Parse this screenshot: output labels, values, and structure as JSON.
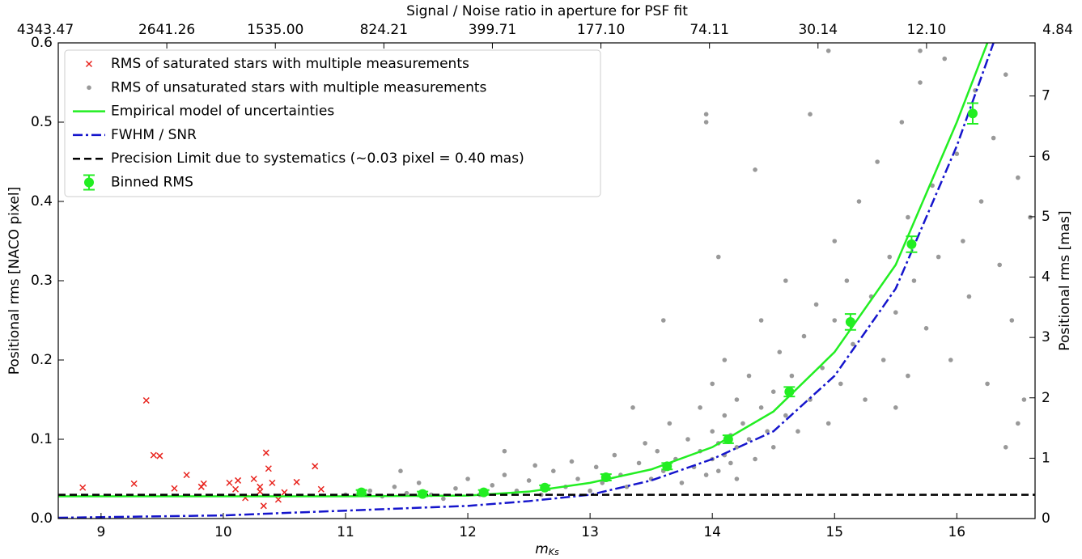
{
  "chart_data": {
    "type": "scatter",
    "top_title": "Signal / Noise ratio in aperture for PSF fit",
    "xlabel": "m",
    "xlabel_subscript": "Ks",
    "ylabel": "Positional rms [NACO pixel]",
    "y2label": "Positional rms [mas]",
    "xlim": [
      8.65,
      16.64
    ],
    "xticks": [
      9,
      10,
      11,
      12,
      13,
      14,
      15,
      16
    ],
    "ylim": [
      0,
      0.6
    ],
    "yticks": [
      {
        "value": 0,
        "label": "0.0"
      },
      0.1,
      0.2,
      0.3,
      0.4,
      0.5,
      0.6
    ],
    "y2lim": [
      0,
      7.88
    ],
    "y2ticks": [
      0,
      1,
      2,
      3,
      4,
      5,
      6,
      7
    ],
    "x2ticks": [
      "4343.47",
      "2641.26",
      "1535.00",
      "824.21",
      "399.71",
      "177.10",
      "74.11",
      "30.14",
      "12.10",
      "4.84"
    ],
    "legend": "upper left",
    "series": [
      {
        "name": "RMS of saturated stars with multiple measurements",
        "kind": "cross",
        "color": "#e8231d",
        "x": [
          8.85,
          9.27,
          9.37,
          9.43,
          9.48,
          9.6,
          9.7,
          9.82,
          9.84,
          10.05,
          10.1,
          10.12,
          10.18,
          10.25,
          10.3,
          10.33,
          10.35,
          10.37,
          10.4,
          10.45,
          10.5,
          10.6,
          10.75,
          10.8,
          10.3
        ],
        "values": [
          0.039,
          0.044,
          0.149,
          0.08,
          0.079,
          0.038,
          0.055,
          0.04,
          0.044,
          0.045,
          0.037,
          0.048,
          0.026,
          0.05,
          0.04,
          0.016,
          0.083,
          0.063,
          0.045,
          0.024,
          0.033,
          0.046,
          0.066,
          0.037,
          0.034
        ]
      },
      {
        "name": "RMS of unsaturated stars with multiple measurements",
        "kind": "dot",
        "color": "#999999",
        "x": [
          11.0,
          11.2,
          11.3,
          11.4,
          11.5,
          11.6,
          11.7,
          11.8,
          11.9,
          12.0,
          12.1,
          12.2,
          12.3,
          12.4,
          12.5,
          12.55,
          12.6,
          12.7,
          12.8,
          12.85,
          12.9,
          13.0,
          13.05,
          13.1,
          13.2,
          13.25,
          13.3,
          13.4,
          13.45,
          13.5,
          13.55,
          13.6,
          13.65,
          13.7,
          13.75,
          13.8,
          13.85,
          13.9,
          13.9,
          13.95,
          14.0,
          14.0,
          14.0,
          14.05,
          14.05,
          14.1,
          14.1,
          14.1,
          14.15,
          14.15,
          14.2,
          14.2,
          14.2,
          14.25,
          14.3,
          14.3,
          14.35,
          14.4,
          14.4,
          14.45,
          14.5,
          14.5,
          14.55,
          14.6,
          14.6,
          14.65,
          14.7,
          14.75,
          14.8,
          14.85,
          14.9,
          14.95,
          15.0,
          15.0,
          15.05,
          15.1,
          15.15,
          15.2,
          15.25,
          15.3,
          15.35,
          15.4,
          15.45,
          15.5,
          15.55,
          15.6,
          15.6,
          15.65,
          15.7,
          15.75,
          15.8,
          15.85,
          15.9,
          15.95,
          16.0,
          16.05,
          16.1,
          16.15,
          16.2,
          16.25,
          16.3,
          16.35,
          16.4,
          16.45,
          16.5,
          16.55,
          16.6,
          13.95,
          13.95,
          14.35,
          14.8,
          14.95,
          15.7,
          16.4,
          14.05,
          13.6,
          13.35,
          12.3,
          11.45,
          16.5,
          15.5
        ],
        "values": [
          0.03,
          0.035,
          0.028,
          0.04,
          0.032,
          0.045,
          0.03,
          0.025,
          0.038,
          0.05,
          0.03,
          0.042,
          0.055,
          0.035,
          0.048,
          0.067,
          0.03,
          0.06,
          0.04,
          0.072,
          0.05,
          0.035,
          0.065,
          0.045,
          0.08,
          0.055,
          0.04,
          0.07,
          0.095,
          0.05,
          0.085,
          0.06,
          0.12,
          0.075,
          0.045,
          0.1,
          0.065,
          0.14,
          0.085,
          0.055,
          0.11,
          0.075,
          0.17,
          0.095,
          0.06,
          0.13,
          0.08,
          0.2,
          0.105,
          0.07,
          0.15,
          0.09,
          0.05,
          0.12,
          0.18,
          0.1,
          0.075,
          0.14,
          0.25,
          0.11,
          0.16,
          0.09,
          0.21,
          0.13,
          0.3,
          0.18,
          0.11,
          0.23,
          0.15,
          0.27,
          0.19,
          0.12,
          0.25,
          0.35,
          0.17,
          0.3,
          0.22,
          0.4,
          0.15,
          0.28,
          0.45,
          0.2,
          0.33,
          0.26,
          0.5,
          0.18,
          0.38,
          0.3,
          0.55,
          0.24,
          0.42,
          0.33,
          0.58,
          0.2,
          0.46,
          0.35,
          0.28,
          0.54,
          0.4,
          0.17,
          0.48,
          0.32,
          0.56,
          0.25,
          0.43,
          0.15,
          0.38,
          0.51,
          0.5,
          0.44,
          0.51,
          0.59,
          0.59,
          0.09,
          0.33,
          0.25,
          0.14,
          0.085,
          0.06,
          0.12,
          0.14
        ]
      },
      {
        "name": "Empirical model of uncertainties",
        "kind": "line",
        "color": "#22ee22",
        "x": [
          8.65,
          11.0,
          12.0,
          12.5,
          13.0,
          13.5,
          14.0,
          14.5,
          15.0,
          15.5,
          16.0,
          16.25
        ],
        "values": [
          0.028,
          0.028,
          0.029,
          0.034,
          0.045,
          0.062,
          0.09,
          0.135,
          0.21,
          0.32,
          0.5,
          0.6
        ]
      },
      {
        "name": "FWHM / SNR",
        "kind": "dashdot",
        "color": "#1515cc",
        "x": [
          8.65,
          10.0,
          11.0,
          12.0,
          12.5,
          13.0,
          13.5,
          14.0,
          14.5,
          15.0,
          15.5,
          16.0,
          16.3
        ],
        "values": [
          0.001,
          0.004,
          0.01,
          0.016,
          0.022,
          0.03,
          0.048,
          0.075,
          0.11,
          0.18,
          0.29,
          0.47,
          0.6
        ]
      },
      {
        "name": "Precision Limit due to systematics (~0.03 pixel = 0.40 mas)",
        "kind": "hline",
        "color": "#000000",
        "values": [
          0.03
        ]
      },
      {
        "name": "Binned RMS",
        "kind": "errorbar",
        "color": "#22ee22",
        "x": [
          11.13,
          11.63,
          12.13,
          12.63,
          13.13,
          13.63,
          14.13,
          14.63,
          15.13,
          15.63,
          16.13
        ],
        "values": [
          0.033,
          0.031,
          0.033,
          0.039,
          0.052,
          0.066,
          0.1,
          0.16,
          0.248,
          0.346,
          0.511
        ],
        "errors": [
          0.003,
          0.003,
          0.003,
          0.003,
          0.004,
          0.004,
          0.005,
          0.006,
          0.01,
          0.01,
          0.013
        ]
      }
    ]
  }
}
